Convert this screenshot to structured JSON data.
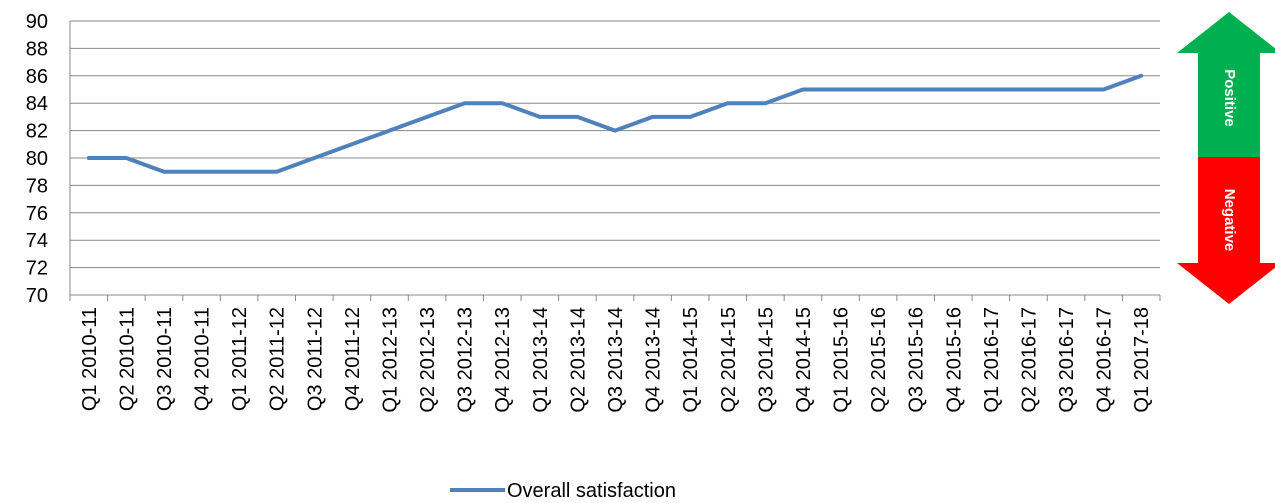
{
  "chart_data": {
    "type": "line",
    "categories": [
      "Q1 2010-11",
      "Q2 2010-11",
      "Q3 2010-11",
      "Q4 2010-11",
      "Q1 2011-12",
      "Q2 2011-12",
      "Q3 2011-12",
      "Q4 2011-12",
      "Q1 2012-13",
      "Q2 2012-13",
      "Q3 2012-13",
      "Q4 2012-13",
      "Q1 2013-14",
      "Q2 2013-14",
      "Q3 2013-14",
      "Q4 2013-14",
      "Q1 2014-15",
      "Q2 2014-15",
      "Q3 2014-15",
      "Q4 2014-15",
      "Q1 2015-16",
      "Q2 2015-16",
      "Q3 2015-16",
      "Q4 2015-16",
      "Q1 2016-17",
      "Q2 2016-17",
      "Q3 2016-17",
      "Q4 2016-17",
      "Q1 2017-18"
    ],
    "series": [
      {
        "name": "Overall satisfaction",
        "color": "#4F81BD",
        "values": [
          80,
          80,
          79,
          79,
          79,
          79,
          80,
          81,
          82,
          83,
          84,
          84,
          83,
          83,
          82,
          83,
          83,
          84,
          84,
          85,
          85,
          85,
          85,
          85,
          85,
          85,
          85,
          85,
          86
        ]
      }
    ],
    "ylim": [
      70,
      90
    ],
    "yticks": [
      "70",
      "72",
      "74",
      "76",
      "78",
      "80",
      "82",
      "84",
      "86",
      "88",
      "90"
    ],
    "grid": true,
    "legend_position": "bottom",
    "annotations": {
      "positive_label": "Positive",
      "negative_label": "Negative",
      "positive_color": "#00B050",
      "negative_color": "#FF0000"
    }
  }
}
